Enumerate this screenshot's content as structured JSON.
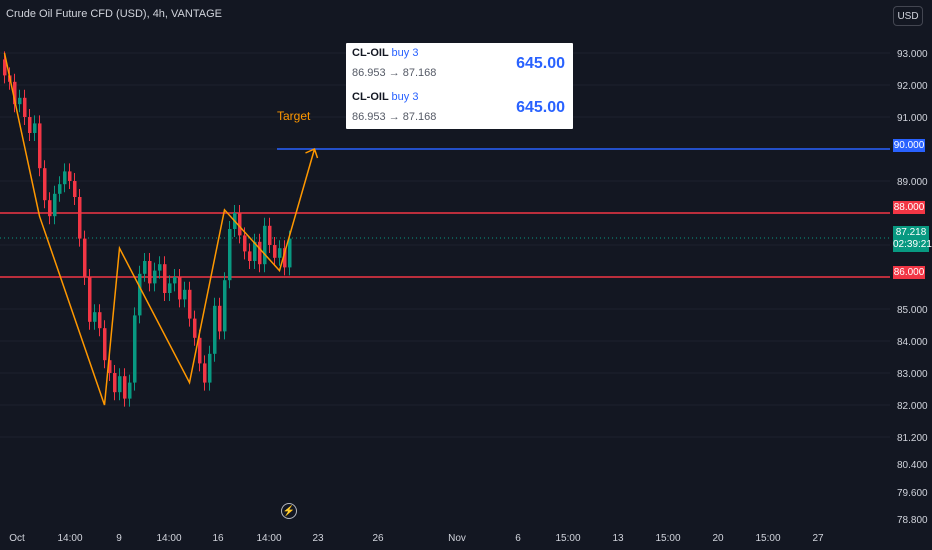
{
  "header": {
    "title": "Crude Oil Future CFD (USD), 4h, VANTAGE",
    "currency": "USD"
  },
  "trades": [
    {
      "symbol": "CL-OIL",
      "side": "buy 3",
      "range": "86.953 → 87.168",
      "amount": "645.00"
    },
    {
      "symbol": "CL-OIL",
      "side": "buy 3",
      "range": "86.953 → 87.168",
      "amount": "645.00"
    }
  ],
  "annotation": {
    "target_label": "Target"
  },
  "price_tags": {
    "target": "90.000",
    "resistance": "88.000",
    "support": "86.000",
    "last_price": "87.218",
    "countdown": "02:39:21"
  },
  "colors": {
    "background": "#131722",
    "up": "#089981",
    "down": "#f23645",
    "pattern": "#ff9800",
    "target_line": "#2962ff",
    "level_line": "#f23645"
  },
  "icons": {
    "flash": "lightning-icon"
  },
  "chart_data": {
    "type": "candlestick",
    "title": "Crude Oil Future CFD (USD), 4h, VANTAGE",
    "y_ticks": [
      "93.000",
      "92.000",
      "91.000",
      "90.000",
      "89.000",
      "88.000",
      "87.218",
      "86.000",
      "85.000",
      "84.000",
      "83.000",
      "82.000",
      "81.200",
      "80.400",
      "79.600",
      "78.800"
    ],
    "x_ticks": [
      "Oct",
      "14:00",
      "9",
      "14:00",
      "16",
      "14:00",
      "23",
      "26",
      "Nov",
      "6",
      "15:00",
      "13",
      "15:00",
      "20",
      "15:00",
      "27"
    ],
    "horizontal_levels": [
      {
        "price": 90.0,
        "color": "#2962ff",
        "label": "90.000"
      },
      {
        "price": 88.0,
        "color": "#f23645",
        "label": "88.000"
      },
      {
        "price": 86.0,
        "color": "#f23645",
        "label": "86.000"
      }
    ],
    "last_price": 87.218,
    "pattern_points": [
      [
        93.0,
        0
      ],
      [
        87.9,
        7
      ],
      [
        82.0,
        20
      ],
      [
        86.9,
        23
      ],
      [
        82.7,
        37
      ],
      [
        88.1,
        44
      ],
      [
        86.2,
        55
      ],
      [
        90.0,
        62
      ]
    ],
    "candles": [
      [
        92.8,
        92.3
      ],
      [
        92.3,
        92.1
      ],
      [
        92.1,
        91.4
      ],
      [
        91.4,
        91.6
      ],
      [
        91.6,
        91.0
      ],
      [
        91.0,
        90.5
      ],
      [
        90.5,
        90.8
      ],
      [
        90.8,
        89.4
      ],
      [
        89.4,
        88.4
      ],
      [
        88.4,
        87.9
      ],
      [
        87.9,
        88.6
      ],
      [
        88.6,
        88.9
      ],
      [
        88.9,
        89.3
      ],
      [
        89.3,
        89.0
      ],
      [
        89.0,
        88.5
      ],
      [
        88.5,
        87.2
      ],
      [
        87.2,
        86.0
      ],
      [
        86.0,
        84.6
      ],
      [
        84.6,
        84.9
      ],
      [
        84.9,
        84.4
      ],
      [
        84.4,
        83.4
      ],
      [
        83.4,
        83.0
      ],
      [
        83.0,
        82.4
      ],
      [
        82.4,
        82.9
      ],
      [
        82.9,
        82.2
      ],
      [
        82.2,
        82.7
      ],
      [
        82.7,
        84.8
      ],
      [
        84.8,
        86.1
      ],
      [
        86.1,
        86.5
      ],
      [
        86.5,
        85.8
      ],
      [
        85.8,
        86.2
      ],
      [
        86.2,
        86.4
      ],
      [
        86.4,
        85.5
      ],
      [
        85.5,
        85.8
      ],
      [
        85.8,
        86.0
      ],
      [
        86.0,
        85.3
      ],
      [
        85.3,
        85.6
      ],
      [
        85.6,
        84.7
      ],
      [
        84.7,
        84.1
      ],
      [
        84.1,
        83.3
      ],
      [
        83.3,
        82.7
      ],
      [
        82.7,
        83.6
      ],
      [
        83.6,
        85.1
      ],
      [
        85.1,
        84.3
      ],
      [
        84.3,
        85.9
      ],
      [
        85.9,
        87.5
      ],
      [
        87.5,
        88.0
      ],
      [
        88.0,
        87.3
      ],
      [
        87.3,
        86.8
      ],
      [
        86.8,
        86.5
      ],
      [
        86.5,
        87.1
      ],
      [
        87.1,
        86.4
      ],
      [
        86.4,
        87.6
      ],
      [
        87.6,
        87.0
      ],
      [
        87.0,
        86.6
      ],
      [
        86.6,
        86.9
      ],
      [
        86.9,
        86.3
      ],
      [
        86.3,
        87.2
      ]
    ]
  }
}
